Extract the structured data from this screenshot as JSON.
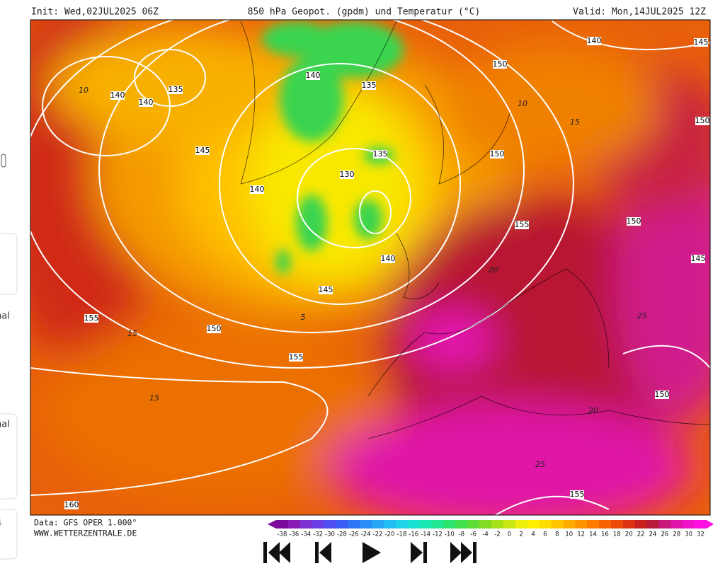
{
  "header": {
    "init": "Init: Wed,02JUL2025 06Z",
    "title": "850 hPa Geopot. (gpdm) und Temperatur (°C)",
    "valid": "Valid: Mon,14JUL2025 12Z"
  },
  "footer": {
    "data": "Data: GFS OPER 1.000°",
    "site": "WWW.WETTERZENTRALE.DE"
  },
  "sidebar": [
    "nal",
    "nal",
    "4"
  ],
  "colorbar": {
    "labels": [
      -38,
      -36,
      -34,
      -32,
      -30,
      -28,
      -26,
      -24,
      -22,
      -20,
      -18,
      -16,
      -14,
      -12,
      -10,
      -8,
      -6,
      -4,
      -2,
      0,
      2,
      4,
      6,
      8,
      10,
      12,
      14,
      16,
      18,
      20,
      22,
      24,
      26,
      28,
      30,
      32
    ],
    "colors": [
      "#7a0a9c",
      "#8a1ab6",
      "#7d2fd0",
      "#6a3ee6",
      "#4f4ff2",
      "#3b5cf5",
      "#2f75f7",
      "#2b8ef7",
      "#27a6f5",
      "#22bdf2",
      "#1fd2ea",
      "#1ce2d4",
      "#1ce8b4",
      "#20e890",
      "#2ce46c",
      "#3fe04c",
      "#5cdc34",
      "#82dc24",
      "#a8e01a",
      "#cbe814",
      "#eef00c",
      "#fff000",
      "#ffdc00",
      "#ffc400",
      "#ffac00",
      "#ff9400",
      "#ff7c00",
      "#f86400",
      "#ec4c08",
      "#dc3414",
      "#c8201e",
      "#b81a3a",
      "#c8187a",
      "#e014a8",
      "#f012c8",
      "#ff10e0"
    ]
  },
  "geopotential_labels": [
    140,
    135,
    140,
    140,
    135,
    145,
    135,
    130,
    140,
    140,
    145,
    150,
    140,
    145,
    150,
    150,
    155,
    150,
    145,
    155,
    150,
    155,
    150,
    155,
    160
  ],
  "temperature_labels": [
    10,
    10,
    15,
    15,
    15,
    5,
    20,
    25,
    20,
    25
  ]
}
